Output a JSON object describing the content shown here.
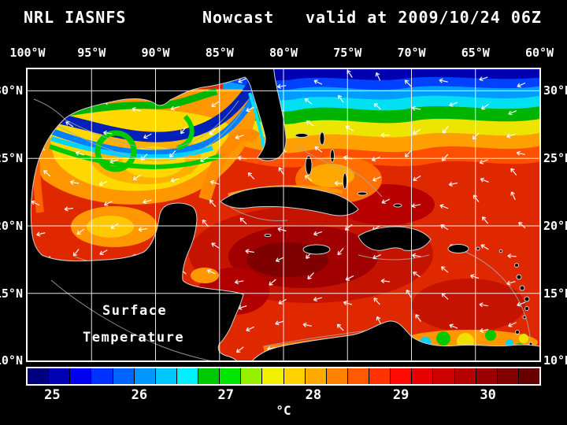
{
  "title": {
    "left": "NRL IASNFS",
    "center": "Nowcast",
    "right": "valid at 2009/10/24 06Z"
  },
  "axes": {
    "lon_ticks": [
      "100°W",
      "95°W",
      "90°W",
      "85°W",
      "80°W",
      "75°W",
      "70°W",
      "65°W",
      "60°W"
    ],
    "lat_ticks": [
      "30°N",
      "25°N",
      "20°N",
      "15°N",
      "10°N"
    ],
    "lat_positions_pct": [
      7.4,
      30.6,
      53.8,
      77.0,
      100
    ]
  },
  "map": {
    "annotations": [
      {
        "text": "Surface"
      },
      {
        "text": "Temperature"
      }
    ]
  },
  "colorbar": {
    "unit": "°C",
    "ticks": [
      {
        "label": "25",
        "pos_pct": 5.1
      },
      {
        "label": "26",
        "pos_pct": 22.0
      },
      {
        "label": "27",
        "pos_pct": 38.8
      },
      {
        "label": "28",
        "pos_pct": 55.8
      },
      {
        "label": "29",
        "pos_pct": 72.8
      },
      {
        "label": "30",
        "pos_pct": 89.7
      }
    ],
    "colors": [
      "#00007e",
      "#0000b4",
      "#0000f0",
      "#0032ff",
      "#0064ff",
      "#0096ff",
      "#00c8ff",
      "#00f0ff",
      "#00c800",
      "#00e600",
      "#96f000",
      "#f0f000",
      "#ffd200",
      "#ffaa00",
      "#ff8200",
      "#ff5a00",
      "#ff3200",
      "#ff0a00",
      "#e60000",
      "#cd0000",
      "#b40000",
      "#9b0000",
      "#820000",
      "#690000"
    ]
  },
  "style": {
    "background": "#000000",
    "text": "#ffffff",
    "map_border": "#ffffff",
    "grid": "#ffffff",
    "land": "#000000",
    "coastline": "#d0d0d0",
    "wind_vector": "#ffffff"
  }
}
